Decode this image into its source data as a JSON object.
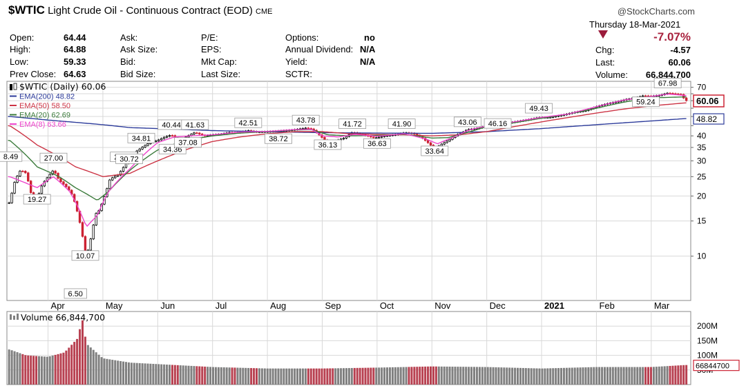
{
  "header": {
    "symbol": "$WTIC",
    "title": "Light Crude Oil - Continuous Contract (EOD)",
    "exchange": "CME",
    "brand": "@StockCharts.com",
    "date": "Thursday 18-Mar-2021",
    "pct_change": "-7.07%",
    "fields": {
      "open_label": "Open:",
      "open": "64.44",
      "high_label": "High:",
      "high": "64.88",
      "low_label": "Low:",
      "low": "59.33",
      "prev_label": "Prev Close:",
      "prev": "64.63",
      "ask_label": "Ask:",
      "ask_size_label": "Ask Size:",
      "bid_label": "Bid:",
      "bid_size_label": "Bid Size:",
      "pe_label": "P/E:",
      "eps_label": "EPS:",
      "mktcap_label": "Mkt Cap:",
      "lastsize_label": "Last Size:",
      "options_label": "Options:",
      "options": "no",
      "div_label": "Annual Dividend:",
      "div": "N/A",
      "yield_label": "Yield:",
      "yield": "N/A",
      "sctr_label": "SCTR:",
      "chg_label": "Chg:",
      "chg": "-4.57",
      "last_label": "Last:",
      "last": "60.06",
      "vol_label": "Volume:",
      "vol": "66,844,700"
    }
  },
  "colors": {
    "up_candle": "#000000",
    "down_candle": "#cc2233",
    "ema200": "#2b3a9a",
    "ema50": "#cc3344",
    "ema20": "#3a7a3a",
    "ema8": "#ee44cc",
    "volume_up": "#808080",
    "volume_down": "#b84050"
  },
  "chart_data": [
    {
      "type": "candlestick",
      "legend_placement": "top-left",
      "legend": [
        {
          "label": "$WTIC (Daily) 60.06"
        },
        {
          "label": "EMA(200) 48.82",
          "color": "#2b3a9a"
        },
        {
          "label": "EMA(50) 58.50",
          "color": "#cc3344"
        },
        {
          "label": "EMA(20) 62.69",
          "color": "#3a7a3a"
        },
        {
          "label": "EMA(8) 63.66",
          "color": "#ee44cc"
        }
      ],
      "y_scale": "log",
      "ylim": [
        6,
        75
      ],
      "y_ticks": [
        10,
        15,
        20,
        25,
        30,
        35,
        40,
        45,
        50,
        55,
        60,
        65,
        70
      ],
      "y_tick_labels": [
        "10",
        "15",
        "20",
        "25",
        "30",
        "35",
        "40",
        "",
        "",
        "",
        "",
        "",
        "70"
      ],
      "x_labels": [
        "Apr",
        "May",
        "Jun",
        "Jul",
        "Aug",
        "Sep",
        "Oct",
        "Nov",
        "Dec",
        "2021",
        "Feb",
        "Mar"
      ],
      "x_label_months": [
        3.0,
        4.0,
        5.0,
        6.0,
        7.0,
        8.0,
        9.0,
        10.0,
        11.0,
        12.0,
        13.0,
        14.0
      ],
      "grid": true,
      "price_anchors": [
        [
          2.3,
          18.5
        ],
        [
          2.4,
          24
        ],
        [
          2.5,
          27
        ],
        [
          2.6,
          26
        ],
        [
          2.7,
          20
        ],
        [
          2.8,
          19.27
        ],
        [
          2.9,
          23
        ],
        [
          3.0,
          25
        ],
        [
          3.1,
          27.0
        ],
        [
          3.2,
          24
        ],
        [
          3.35,
          22
        ],
        [
          3.45,
          20
        ],
        [
          3.55,
          16
        ],
        [
          3.62,
          13
        ],
        [
          3.68,
          10.07
        ],
        [
          3.75,
          11
        ],
        [
          3.82,
          14
        ],
        [
          3.88,
          16.5
        ],
        [
          3.94,
          17
        ],
        [
          4.0,
          19
        ],
        [
          4.06,
          21
        ],
        [
          4.12,
          24
        ],
        [
          4.2,
          25
        ],
        [
          4.28,
          25.5
        ],
        [
          4.38,
          27.98
        ],
        [
          4.48,
          30.72
        ],
        [
          4.58,
          33
        ],
        [
          4.7,
          34.81
        ],
        [
          4.85,
          37
        ],
        [
          5.0,
          38
        ],
        [
          5.13,
          39.5
        ],
        [
          5.25,
          40.44
        ],
        [
          5.35,
          38.5
        ],
        [
          5.45,
          38.5
        ],
        [
          5.55,
          40
        ],
        [
          5.68,
          41.63
        ],
        [
          5.85,
          40
        ],
        [
          6.0,
          40.5
        ],
        [
          6.15,
          40.8
        ],
        [
          6.3,
          41.6
        ],
        [
          6.45,
          41.5
        ],
        [
          6.65,
          42.51
        ],
        [
          6.8,
          41.8
        ],
        [
          7.0,
          42.0
        ],
        [
          7.2,
          42.3
        ],
        [
          7.45,
          42.8
        ],
        [
          7.7,
          43.78
        ],
        [
          7.82,
          43.2
        ],
        [
          7.92,
          41
        ],
        [
          8.05,
          38
        ],
        [
          8.2,
          37.5
        ],
        [
          8.4,
          39
        ],
        [
          8.55,
          41.72
        ],
        [
          8.75,
          40.5
        ],
        [
          8.95,
          39
        ],
        [
          9.15,
          40
        ],
        [
          9.35,
          40.6
        ],
        [
          9.5,
          41.5
        ],
        [
          9.65,
          41.2
        ],
        [
          9.8,
          39.5
        ],
        [
          9.95,
          36.5
        ],
        [
          10.05,
          34.5
        ],
        [
          10.15,
          36
        ],
        [
          10.3,
          38
        ],
        [
          10.45,
          40.5
        ],
        [
          10.55,
          41.5
        ],
        [
          10.65,
          43.06
        ],
        [
          10.8,
          43.5
        ],
        [
          10.95,
          44.5
        ],
        [
          11.1,
          45.2
        ],
        [
          11.25,
          45.8
        ],
        [
          11.4,
          46.5
        ],
        [
          11.55,
          47.2
        ],
        [
          11.75,
          48.2
        ],
        [
          11.95,
          49.43
        ],
        [
          12.15,
          49.5
        ],
        [
          12.4,
          51
        ],
        [
          12.6,
          52.5
        ],
        [
          12.8,
          53.5
        ],
        [
          13.0,
          56
        ],
        [
          13.2,
          58
        ],
        [
          13.4,
          59.5
        ],
        [
          13.55,
          61
        ],
        [
          13.7,
          61.8
        ],
        [
          13.85,
          63.5
        ],
        [
          14.0,
          63.2
        ],
        [
          14.15,
          63.8
        ],
        [
          14.3,
          65.5
        ],
        [
          14.45,
          64.8
        ],
        [
          14.55,
          64.4
        ],
        [
          14.62,
          60.06
        ]
      ],
      "price_annotations": [
        {
          "label": "8.49",
          "month": 2.32,
          "price": 31.5
        },
        {
          "label": "19.27",
          "month": 2.8,
          "price": 19.27
        },
        {
          "label": "27.00",
          "month": 3.1,
          "price": 31.0
        },
        {
          "label": "6.50",
          "month": 3.5,
          "price": 6.5
        },
        {
          "label": "10.07",
          "month": 3.68,
          "price": 10.07
        },
        {
          "label": "27.98",
          "month": 4.38,
          "price": 31.4
        },
        {
          "label": "30.72",
          "month": 4.48,
          "price": 30.72
        },
        {
          "label": "34.81",
          "month": 4.7,
          "price": 39.0
        },
        {
          "label": "34.36",
          "month": 5.27,
          "price": 34.36
        },
        {
          "label": "40.44",
          "month": 5.25,
          "price": 45.5
        },
        {
          "label": "37.08",
          "month": 5.55,
          "price": 37.08
        },
        {
          "label": "41.63",
          "month": 5.68,
          "price": 45.5
        },
        {
          "label": "42.51",
          "month": 6.65,
          "price": 46.5
        },
        {
          "label": "38.72",
          "month": 7.2,
          "price": 38.72
        },
        {
          "label": "43.78",
          "month": 7.7,
          "price": 48.0
        },
        {
          "label": "36.13",
          "month": 8.1,
          "price": 36.13
        },
        {
          "label": "41.72",
          "month": 8.55,
          "price": 46.0
        },
        {
          "label": "36.63",
          "month": 9.0,
          "price": 36.63
        },
        {
          "label": "41.90",
          "month": 9.45,
          "price": 46.0
        },
        {
          "label": "33.64",
          "month": 10.05,
          "price": 33.64
        },
        {
          "label": "43.06",
          "month": 10.65,
          "price": 47.0
        },
        {
          "label": "46.16",
          "month": 11.2,
          "price": 46.16
        },
        {
          "label": "49.43",
          "month": 11.95,
          "price": 55.0
        },
        {
          "label": "59.24",
          "month": 13.9,
          "price": 59.24
        },
        {
          "label": "67.98",
          "month": 14.3,
          "price": 73.5
        }
      ],
      "ema200_anchors": [
        [
          2.3,
          50
        ],
        [
          3.0,
          48
        ],
        [
          4.0,
          45.5
        ],
        [
          4.5,
          44
        ],
        [
          5.0,
          43.5
        ],
        [
          6.0,
          42.5
        ],
        [
          7.0,
          42.0
        ],
        [
          8.0,
          41.5
        ],
        [
          9.0,
          41.3
        ],
        [
          10.0,
          41.2
        ],
        [
          11.0,
          42.0
        ],
        [
          12.0,
          43.5
        ],
        [
          13.0,
          45.5
        ],
        [
          14.0,
          47.5
        ],
        [
          14.62,
          48.82
        ]
      ],
      "ema50_anchors": [
        [
          2.3,
          45
        ],
        [
          2.8,
          36
        ],
        [
          3.5,
          28
        ],
        [
          4.0,
          25
        ],
        [
          4.5,
          26
        ],
        [
          5.0,
          30
        ],
        [
          5.5,
          34
        ],
        [
          6.0,
          37.5
        ],
        [
          6.5,
          39.5
        ],
        [
          7.0,
          41.0
        ],
        [
          7.5,
          42.0
        ],
        [
          8.0,
          42.0
        ],
        [
          8.5,
          41.0
        ],
        [
          9.0,
          40.7
        ],
        [
          9.5,
          40.5
        ],
        [
          10.0,
          40.0
        ],
        [
          10.5,
          40.5
        ],
        [
          11.0,
          42.0
        ],
        [
          11.5,
          44.5
        ],
        [
          12.0,
          47
        ],
        [
          12.5,
          49.5
        ],
        [
          13.0,
          52
        ],
        [
          13.5,
          54.5
        ],
        [
          14.0,
          56.5
        ],
        [
          14.62,
          58.5
        ]
      ],
      "ema20_anchors": [
        [
          2.3,
          38
        ],
        [
          2.8,
          28
        ],
        [
          3.2,
          25
        ],
        [
          3.5,
          22
        ],
        [
          3.9,
          19
        ],
        [
          4.1,
          21
        ],
        [
          4.5,
          27
        ],
        [
          5.0,
          34
        ],
        [
          5.5,
          38
        ],
        [
          6.0,
          40
        ],
        [
          6.5,
          41.3
        ],
        [
          7.0,
          42.0
        ],
        [
          7.5,
          42.8
        ],
        [
          7.8,
          43
        ],
        [
          8.1,
          40.5
        ],
        [
          8.5,
          40.0
        ],
        [
          9.0,
          40.2
        ],
        [
          9.5,
          40.8
        ],
        [
          10.0,
          39.0
        ],
        [
          10.3,
          39.2
        ],
        [
          10.7,
          42.0
        ],
        [
          11.0,
          44.5
        ],
        [
          11.5,
          46.5
        ],
        [
          12.0,
          49
        ],
        [
          12.5,
          51.5
        ],
        [
          13.0,
          55
        ],
        [
          13.5,
          59
        ],
        [
          14.0,
          62
        ],
        [
          14.62,
          62.69
        ]
      ],
      "ema8_anchors": [
        [
          2.3,
          25
        ],
        [
          2.8,
          22
        ],
        [
          3.1,
          25
        ],
        [
          3.4,
          21
        ],
        [
          3.7,
          14
        ],
        [
          3.9,
          16
        ],
        [
          4.1,
          21
        ],
        [
          4.5,
          27.5
        ],
        [
          5.0,
          37
        ],
        [
          5.3,
          39.5
        ],
        [
          5.6,
          40
        ],
        [
          6.0,
          40.5
        ],
        [
          6.5,
          41.8
        ],
        [
          7.0,
          42.1
        ],
        [
          7.5,
          43.0
        ],
        [
          7.8,
          43.2
        ],
        [
          8.0,
          40.0
        ],
        [
          8.3,
          39.5
        ],
        [
          8.6,
          40.7
        ],
        [
          9.0,
          39.8
        ],
        [
          9.5,
          41.0
        ],
        [
          9.9,
          38.5
        ],
        [
          10.1,
          36.5
        ],
        [
          10.4,
          39.5
        ],
        [
          10.7,
          43.0
        ],
        [
          11.0,
          44.8
        ],
        [
          11.5,
          47
        ],
        [
          12.0,
          49.5
        ],
        [
          12.5,
          51.5
        ],
        [
          13.0,
          56
        ],
        [
          13.5,
          60.5
        ],
        [
          14.0,
          63
        ],
        [
          14.3,
          64.8
        ],
        [
          14.62,
          63.66
        ]
      ],
      "current_price_label": "60.06",
      "ema200_label": "48.82"
    },
    {
      "type": "bar",
      "legend": [
        {
          "label": "Volume 66,844,700"
        }
      ],
      "ylim": [
        0,
        250000000
      ],
      "y_ticks": [
        50000000,
        100000000,
        150000000,
        200000000
      ],
      "y_tick_labels": [
        "50M",
        "100M",
        "150M",
        "200M"
      ],
      "last_value": 66844700,
      "last_label": "66844700",
      "volume_anchors": [
        [
          2.3,
          120000000
        ],
        [
          2.6,
          100000000
        ],
        [
          3.0,
          95000000
        ],
        [
          3.3,
          110000000
        ],
        [
          3.55,
          160000000
        ],
        [
          3.62,
          230000000
        ],
        [
          3.7,
          140000000
        ],
        [
          4.0,
          90000000
        ],
        [
          4.5,
          75000000
        ],
        [
          5.0,
          70000000
        ],
        [
          6.0,
          60000000
        ],
        [
          7.0,
          55000000
        ],
        [
          8.0,
          55000000
        ],
        [
          9.0,
          58000000
        ],
        [
          10.0,
          62000000
        ],
        [
          11.0,
          60000000
        ],
        [
          12.0,
          55000000
        ],
        [
          13.0,
          60000000
        ],
        [
          14.0,
          60000000
        ],
        [
          14.62,
          66844700
        ]
      ]
    }
  ]
}
